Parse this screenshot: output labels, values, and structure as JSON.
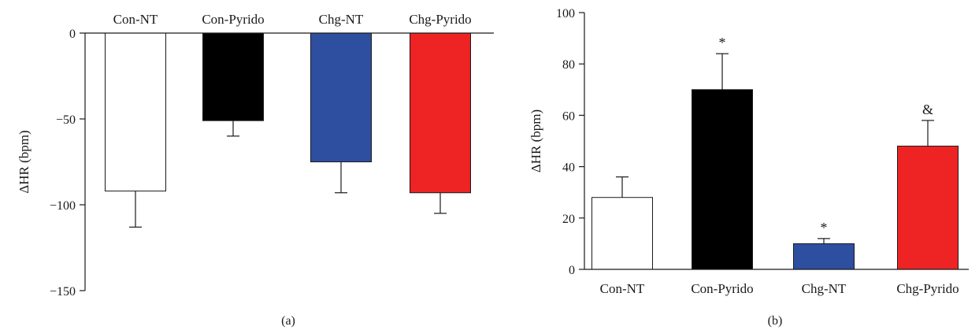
{
  "chart_data": [
    {
      "type": "bar",
      "panel_label": "(a)",
      "categories": [
        "Con-NT",
        "Con-Pyrido",
        "Chg-NT",
        "Chg-Pyrido"
      ],
      "values": [
        -92,
        -51,
        -75,
        -93
      ],
      "errors": [
        21,
        9,
        18,
        12
      ],
      "annotations": [
        "",
        "",
        "",
        ""
      ],
      "colors": [
        "#ffffff",
        "#000000",
        "#2e4f9f",
        "#ee2424"
      ],
      "ylabel": "ΔHR (bpm)",
      "ylim": [
        -150,
        0
      ],
      "yticks": [
        0,
        -50,
        -100,
        -150
      ],
      "category_labels_position": "top",
      "grid": false
    },
    {
      "type": "bar",
      "panel_label": "(b)",
      "categories": [
        "Con-NT",
        "Con-Pyrido",
        "Chg-NT",
        "Chg-Pyrido"
      ],
      "values": [
        28,
        70,
        10,
        48
      ],
      "errors": [
        8,
        14,
        2,
        10
      ],
      "annotations": [
        "",
        "*",
        "*",
        "&"
      ],
      "colors": [
        "#ffffff",
        "#000000",
        "#2e4f9f",
        "#ee2424"
      ],
      "ylabel": "ΔHR (bpm)",
      "ylim": [
        0,
        100
      ],
      "yticks": [
        0,
        20,
        40,
        60,
        80,
        100
      ],
      "category_labels_position": "bottom",
      "grid": false
    }
  ]
}
